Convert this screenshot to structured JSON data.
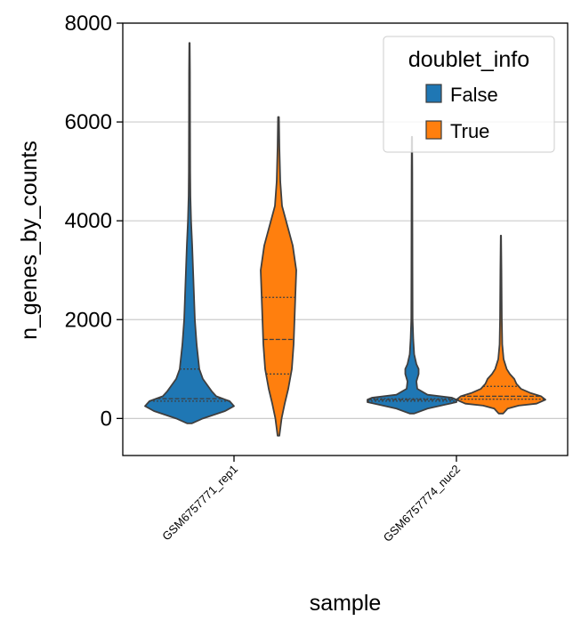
{
  "chart_data": {
    "type": "violin",
    "xlabel": "sample",
    "ylabel": "n_genes_by_counts",
    "ylim": [
      -750,
      8000
    ],
    "yticks": [
      0,
      2000,
      4000,
      6000,
      8000
    ],
    "categories": [
      "GSM6757771_rep1",
      "GSM6757774_nuc2"
    ],
    "grid": "horizontal",
    "legend": {
      "title": "doublet_info",
      "position": "top-right",
      "entries": [
        {
          "label": "False",
          "color": "#1f77b4"
        },
        {
          "label": "True",
          "color": "#ff7f0e"
        }
      ]
    },
    "series": [
      {
        "name": "False",
        "color": "#1f77b4",
        "violins": [
          {
            "category": "GSM6757771_rep1",
            "quartiles": [
              350,
              400,
              1000
            ],
            "profile": [
              [
                -100,
                0.05
              ],
              [
                0,
                0.3
              ],
              [
                150,
                0.8
              ],
              [
                250,
                1.0
              ],
              [
                350,
                0.9
              ],
              [
                450,
                0.6
              ],
              [
                550,
                0.5
              ],
              [
                650,
                0.42
              ],
              [
                800,
                0.3
              ],
              [
                1000,
                0.22
              ],
              [
                1500,
                0.16
              ],
              [
                2000,
                0.12
              ],
              [
                2500,
                0.1
              ],
              [
                3000,
                0.08
              ],
              [
                3500,
                0.06
              ],
              [
                4000,
                0.035
              ],
              [
                4500,
                0.02
              ],
              [
                5000,
                0.015
              ],
              [
                6000,
                0.012
              ],
              [
                7000,
                0.01
              ],
              [
                7600,
                0.005
              ]
            ]
          },
          {
            "category": "GSM6757774_nuc2",
            "quartiles": [
              350,
              380,
              400
            ],
            "profile": [
              [
                100,
                0.05
              ],
              [
                200,
                0.35
              ],
              [
                280,
                0.75
              ],
              [
                330,
                1.0
              ],
              [
                380,
                1.0
              ],
              [
                420,
                0.9
              ],
              [
                480,
                0.35
              ],
              [
                600,
                0.12
              ],
              [
                750,
                0.1
              ],
              [
                900,
                0.15
              ],
              [
                1000,
                0.15
              ],
              [
                1100,
                0.1
              ],
              [
                1300,
                0.05
              ],
              [
                1600,
                0.03
              ],
              [
                2000,
                0.015
              ],
              [
                3000,
                0.012
              ],
              [
                4000,
                0.01
              ],
              [
                5000,
                0.008
              ],
              [
                5700,
                0.004
              ]
            ]
          }
        ]
      },
      {
        "name": "True",
        "color": "#ff7f0e",
        "violins": [
          {
            "category": "GSM6757771_rep1",
            "quartiles": [
              900,
              1600,
              2450
            ],
            "profile": [
              [
                -350,
                0.02
              ],
              [
                0,
                0.07
              ],
              [
                300,
                0.14
              ],
              [
                600,
                0.22
              ],
              [
                1000,
                0.3
              ],
              [
                1500,
                0.34
              ],
              [
                2000,
                0.36
              ],
              [
                2500,
                0.38
              ],
              [
                3000,
                0.4
              ],
              [
                3500,
                0.32
              ],
              [
                3900,
                0.2
              ],
              [
                4300,
                0.08
              ],
              [
                4800,
                0.04
              ],
              [
                5500,
                0.02
              ],
              [
                6100,
                0.01
              ]
            ]
          },
          {
            "category": "GSM6757774_nuc2",
            "quartiles": [
              390,
              450,
              650
            ],
            "profile": [
              [
                100,
                0.05
              ],
              [
                200,
                0.15
              ],
              [
                260,
                0.4
              ],
              [
                300,
                0.8
              ],
              [
                380,
                1.0
              ],
              [
                450,
                0.9
              ],
              [
                520,
                0.65
              ],
              [
                600,
                0.45
              ],
              [
                700,
                0.35
              ],
              [
                800,
                0.3
              ],
              [
                900,
                0.2
              ],
              [
                1000,
                0.13
              ],
              [
                1200,
                0.06
              ],
              [
                1500,
                0.03
              ],
              [
                2000,
                0.02
              ],
              [
                3000,
                0.012
              ],
              [
                3700,
                0.004
              ]
            ]
          }
        ]
      }
    ]
  }
}
